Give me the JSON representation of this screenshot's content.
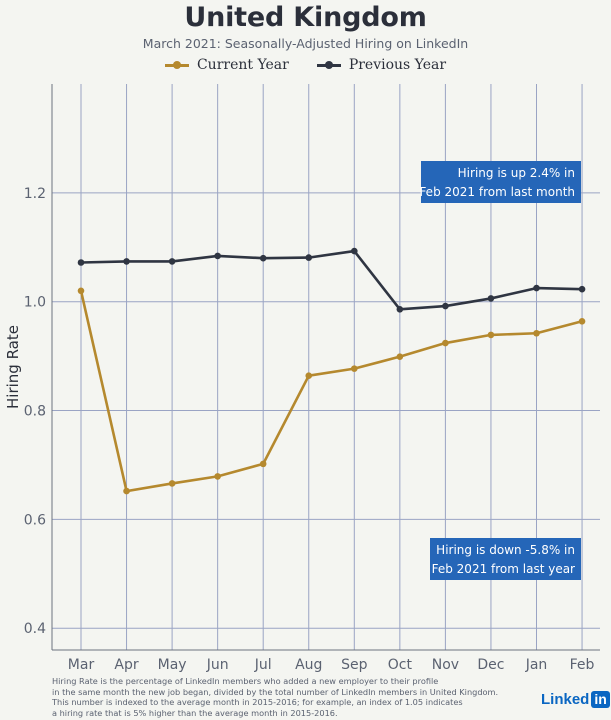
{
  "chart_data": {
    "type": "line",
    "title": "United Kingdom",
    "subtitle": "March 2021: Seasonally-Adjusted Hiring on LinkedIn",
    "xlabel": "",
    "ylabel": "Hiring Rate",
    "categories": [
      "Mar",
      "Apr",
      "May",
      "Jun",
      "Jul",
      "Aug",
      "Sep",
      "Oct",
      "Nov",
      "Dec",
      "Jan",
      "Feb"
    ],
    "ylim": [
      0.36,
      1.4
    ],
    "yticks": [
      0.4,
      0.6,
      0.8,
      1.0,
      1.2
    ],
    "ytick_labels": [
      "0.4",
      "0.6",
      "0.8",
      "1.0",
      "1.2"
    ],
    "grid": true,
    "legend_position": "top-center",
    "series": [
      {
        "name": "Current Year",
        "color": "#b5892e",
        "values": [
          1.02,
          0.652,
          0.666,
          0.679,
          0.702,
          0.864,
          0.877,
          0.899,
          0.924,
          0.939,
          0.942,
          0.964
        ]
      },
      {
        "name": "Previous Year",
        "color": "#2f3542",
        "values": [
          1.072,
          1.074,
          1.074,
          1.084,
          1.08,
          1.081,
          1.093,
          0.986,
          0.992,
          1.006,
          1.025,
          1.023
        ]
      }
    ],
    "annotations": [
      {
        "line1": "Hiring is up 2.4% in",
        "line2": "Feb 2021 from last month",
        "color": "#2566b8"
      },
      {
        "line1": "Hiring is down -5.8% in",
        "line2": "Feb 2021 from last year",
        "color": "#2566b8"
      }
    ]
  },
  "footnote": {
    "line1": "Hiring Rate is the percentage of LinkedIn members who added a new employer to their profile",
    "line2": "in the same month the new job began, divided by the total number of LinkedIn members in United Kingdom.",
    "line3": "This number is indexed to the average month in 2015-2016; for example, an index of 1.05 indicates",
    "line4": "a hiring rate that is 5% higher than the average month in 2015-2016."
  },
  "logo": {
    "text": "Linked",
    "badge": "in"
  }
}
